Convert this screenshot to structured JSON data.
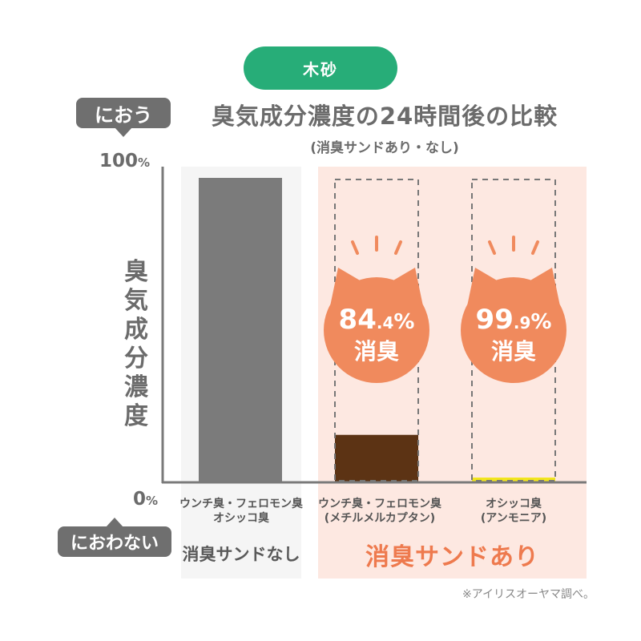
{
  "badge": "木砂",
  "tags": {
    "top": "におう",
    "bottom": "におわない"
  },
  "chart_data": {
    "type": "bar",
    "title": "臭気成分濃度の24時間後の比較",
    "subtitle": "(消臭サンドあり・なし)",
    "ylabel": "臭気成分濃度",
    "ylim": [
      0,
      100
    ],
    "yticks": [
      {
        "value": 100,
        "num": "100",
        "unit": "%"
      },
      {
        "value": 0,
        "num": "0",
        "unit": "%"
      }
    ],
    "categories": [
      {
        "line1": "ウンチ臭・フェロモン臭",
        "line2": "オシッコ臭"
      },
      {
        "line1": "ウンチ臭・フェロモン臭",
        "line2": "(メチルメルカプタン)"
      },
      {
        "line1": "オシッコ臭",
        "line2": "(アンモニア)"
      }
    ],
    "values": [
      100,
      15.6,
      0.1
    ],
    "colors": [
      "#7b7b7b",
      "#5c3314",
      "#f2e51d"
    ],
    "groups": [
      "消臭サンドなし",
      "消臭サンドあり"
    ],
    "annotations": [
      {
        "num": "84",
        "dec": ".4",
        "unit": "%",
        "label": "消臭"
      },
      {
        "num": "99",
        "dec": ".9",
        "unit": "%",
        "label": "消臭"
      }
    ]
  },
  "note": "※アイリスオーヤマ調べ。",
  "colors": {
    "accent": "#27ad78",
    "cat_badge": "#f08a5d",
    "pink_panel": "#fde8e1"
  }
}
